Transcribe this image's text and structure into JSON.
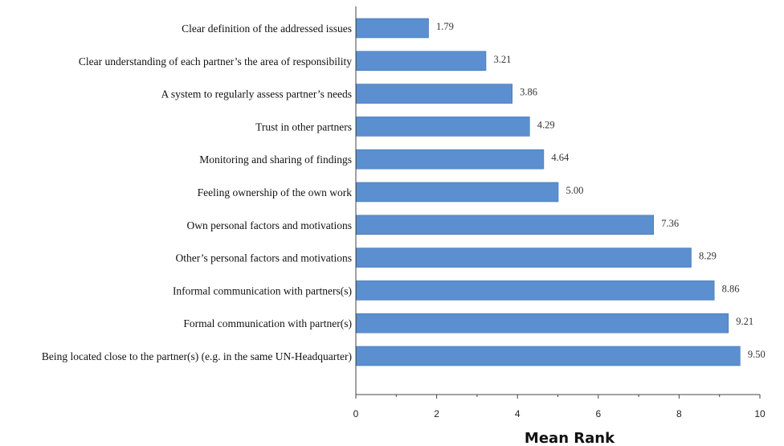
{
  "chart_data": {
    "type": "bar",
    "orientation": "horizontal",
    "categories": [
      "Clear definition of the addressed issues",
      "Clear understanding of each partner’s the area of responsibility",
      "A system to regularly assess partner’s needs",
      "Trust in other partners",
      "Monitoring and sharing of findings",
      "Feeling ownership of the own work",
      "Own personal factors and motivations",
      "Other’s personal factors and motivations",
      "Informal communication with partners(s)",
      "Formal communication with partner(s)",
      "Being located close to the partner(s) (e.g. in the same UN-Headquarter)"
    ],
    "values": [
      1.79,
      3.21,
      3.86,
      4.29,
      4.64,
      5.0,
      7.36,
      8.29,
      8.86,
      9.21,
      9.5
    ],
    "value_labels": [
      "1.79",
      "3.21",
      "3.86",
      "4.29",
      "4.64",
      "5.00",
      "7.36",
      "8.29",
      "8.86",
      "9.21",
      "9.50"
    ],
    "xlabel": "Mean Rank",
    "xlim": [
      0,
      10
    ],
    "xticks": [
      0,
      2,
      4,
      6,
      8,
      10
    ],
    "xtick_labels": [
      "0",
      "2",
      "4",
      "6",
      "8",
      "10"
    ],
    "grid": false,
    "legend": "none",
    "bar_color": "#5b8fcf",
    "bar_edge_color": "#3f73b5"
  }
}
